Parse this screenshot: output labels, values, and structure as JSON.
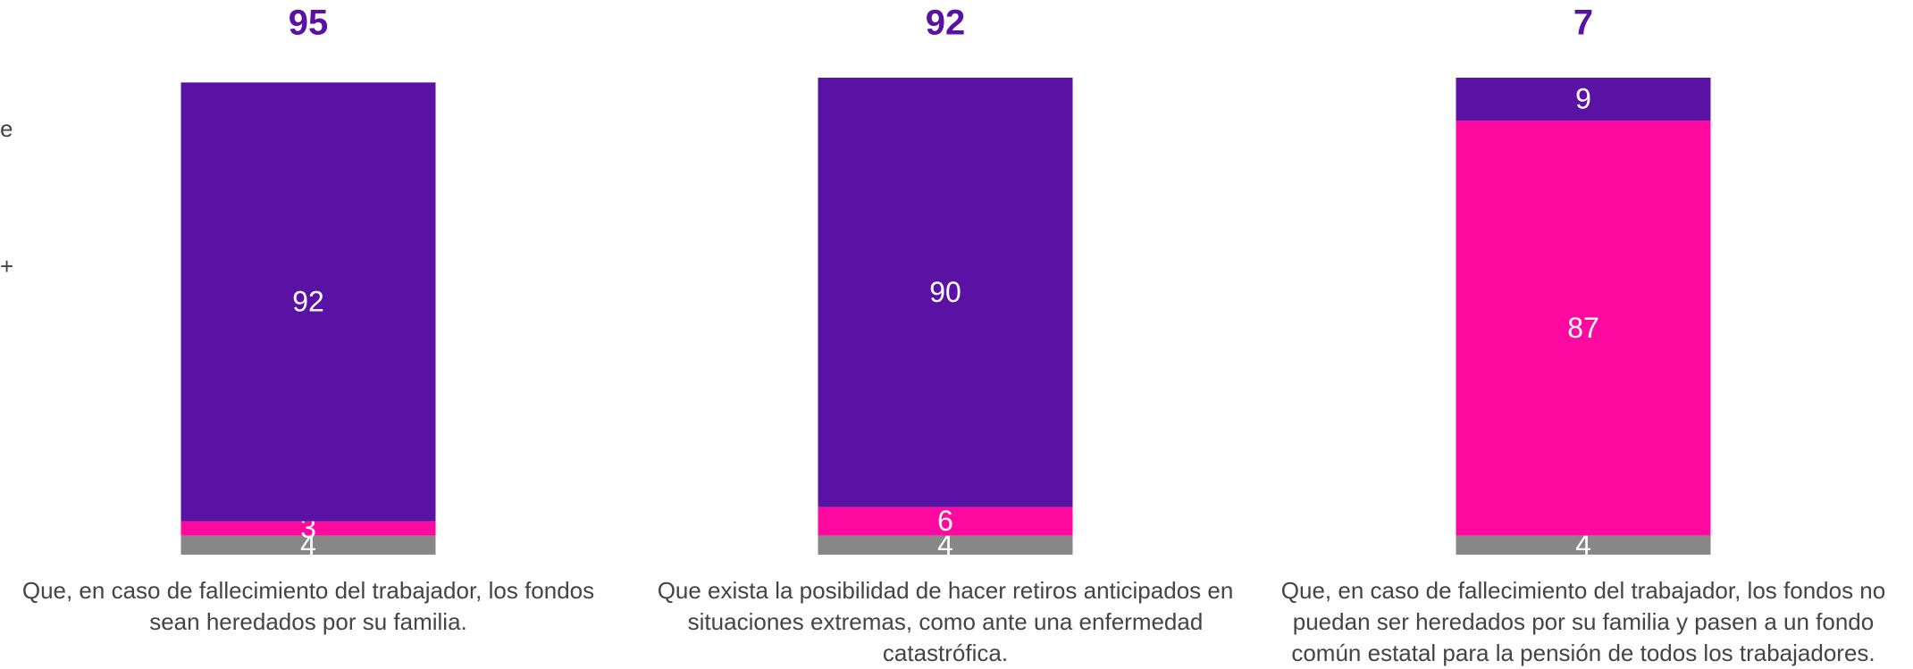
{
  "chart_data": {
    "type": "stacked_bar",
    "categories": [
      "Que, en caso de fallecimiento del trabajador, los fondos sean heredados por su familia.",
      "Que exista la posibilidad de hacer retiros anticipados en situaciones extremas, como ante una enfermedad catastrófica.",
      "Que, en caso de fallecimiento del trabajador, los fondos no puedan ser heredados por su familia y pasen a un fondo común estatal para la pensión de todos los trabajadores."
    ],
    "series": [
      {
        "color": "#878787",
        "values": [
          4,
          4,
          4
        ]
      },
      {
        "color": "#ff0aa0",
        "values": [
          3,
          6,
          87
        ]
      },
      {
        "color": "#5a12a4",
        "values": [
          92,
          90,
          9
        ]
      }
    ],
    "annotations": [
      95,
      92,
      7
    ],
    "annotation_color": "#5a12a4",
    "clipped_texts": [
      "e",
      "+"
    ],
    "ylim": [
      0,
      100
    ]
  }
}
